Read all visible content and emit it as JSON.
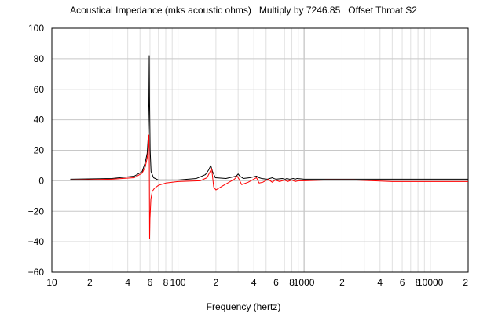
{
  "chart_data": {
    "type": "line",
    "title": "Acoustical Impedance (mks acoustic ohms)   Multiply by 7246.85   Offset Throat S2",
    "xlabel": "Frequency (hertz)",
    "ylabel": "",
    "x_scale": "log",
    "xlim": [
      10,
      20000
    ],
    "ylim": [
      -60,
      100
    ],
    "grid": true,
    "x_tick_labels": [
      {
        "value": 10,
        "label": "10"
      },
      {
        "value": 20,
        "label": "2"
      },
      {
        "value": 40,
        "label": "4"
      },
      {
        "value": 60,
        "label": "6"
      },
      {
        "value": 80,
        "label": "8"
      },
      {
        "value": 100,
        "label": "100"
      },
      {
        "value": 200,
        "label": "2"
      },
      {
        "value": 400,
        "label": "4"
      },
      {
        "value": 600,
        "label": "6"
      },
      {
        "value": 800,
        "label": "8"
      },
      {
        "value": 1000,
        "label": "1000"
      },
      {
        "value": 2000,
        "label": "2"
      },
      {
        "value": 4000,
        "label": "4"
      },
      {
        "value": 6000,
        "label": "6"
      },
      {
        "value": 8000,
        "label": "8"
      },
      {
        "value": 10000,
        "label": "10000"
      },
      {
        "value": 20000,
        "label": "2"
      }
    ],
    "y_tick_labels": [
      {
        "value": 100,
        "label": "100"
      },
      {
        "value": 80,
        "label": "80"
      },
      {
        "value": 60,
        "label": "60"
      },
      {
        "value": 40,
        "label": "40"
      },
      {
        "value": 20,
        "label": "20"
      },
      {
        "value": 0,
        "label": "0"
      },
      {
        "value": -20,
        "label": "−20"
      },
      {
        "value": -40,
        "label": "−40"
      },
      {
        "value": -60,
        "label": "−60"
      }
    ],
    "series": [
      {
        "color": "#000000",
        "x": [
          14,
          30,
          45,
          52,
          55,
          57,
          58,
          58.8,
          59.2,
          59.5,
          60.2,
          61.2,
          64,
          70,
          100,
          140,
          165,
          175,
          182,
          188,
          198,
          240,
          290,
          300,
          310,
          330,
          370,
          420,
          440,
          460,
          510,
          560,
          575,
          600,
          670,
          710,
          730,
          770,
          820,
          850,
          880,
          1000,
          1200,
          1600,
          2500,
          5000,
          10000,
          20000
        ],
        "y": [
          1,
          1.5,
          3,
          6,
          12,
          18,
          28,
          50,
          82,
          55,
          20,
          6,
          2,
          0.5,
          0.5,
          1.5,
          4,
          7,
          10,
          6,
          2,
          1.5,
          3,
          4.5,
          3,
          1.5,
          2,
          3,
          2,
          1.5,
          1,
          2,
          1.5,
          1,
          1.5,
          1,
          1.5,
          1,
          1.5,
          1,
          1.5,
          1,
          1,
          1,
          1,
          1,
          1,
          1
        ]
      },
      {
        "color": "#ff0000",
        "x": [
          14,
          30,
          45,
          52,
          55,
          57,
          58,
          58.8,
          59.2,
          59.6,
          60,
          61,
          62.5,
          65,
          70,
          80,
          100,
          150,
          170,
          185,
          192,
          200,
          230,
          280,
          295,
          305,
          320,
          360,
          420,
          440,
          470,
          520,
          560,
          590,
          640,
          700,
          740,
          800,
          850,
          900,
          1000,
          1500,
          2500,
          5000,
          10000,
          20000
        ],
        "y": [
          0.5,
          1,
          2,
          5,
          9,
          15,
          20,
          30,
          18,
          -38,
          -25,
          -12,
          -7,
          -5,
          -3,
          -1.5,
          -0.5,
          0,
          2,
          8,
          -4,
          -6,
          -3,
          1,
          3,
          1,
          -2.5,
          -1,
          2,
          -1.5,
          -1,
          1,
          -1,
          0.5,
          -0.5,
          0.5,
          -0.5,
          0.5,
          -0.5,
          0,
          0,
          0.5,
          0.5,
          -0.5,
          -0.5,
          -0.5
        ]
      }
    ]
  }
}
